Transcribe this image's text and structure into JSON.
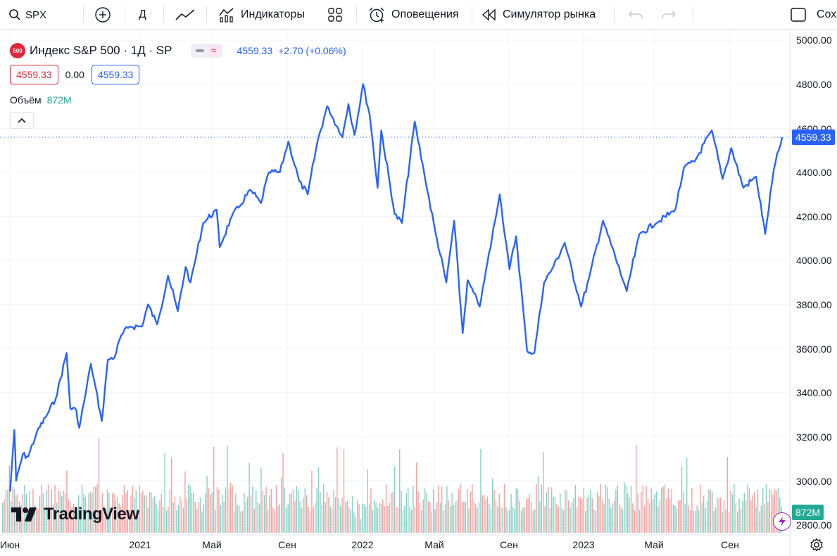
{
  "toolbar": {
    "symbol": "SPX",
    "interval": "Д",
    "indicators_label": "Индикаторы",
    "alerts_label": "Оповещения",
    "replay_label": "Симулятор рынка",
    "save_label": "Сох"
  },
  "legend": {
    "symbol_badge": "500",
    "title": "Индекс S&P 500 · 1Д · SP",
    "last": "4559.33",
    "change": "+2.70 (+0.06%)",
    "bid": "4559.33",
    "spread": "0.00",
    "ask": "4559.33",
    "volume_label": "Объём",
    "volume_value": "872M"
  },
  "price_scale": {
    "ticks": [
      "5000.00",
      "4800.00",
      "4600.00",
      "4400.00",
      "4200.00",
      "4000.00",
      "3800.00",
      "3600.00",
      "3400.00",
      "3200.00",
      "3000.00",
      "2800.00"
    ],
    "last_price_label": "4559.33",
    "volume_label": "872M"
  },
  "time_scale": {
    "ticks": [
      "Июн",
      "2021",
      "Май",
      "Сен",
      "2022",
      "Май",
      "Сен",
      "2023",
      "Май",
      "Сен"
    ]
  },
  "branding": {
    "logo_text": "TradingView"
  },
  "colors": {
    "line": "#2962ff",
    "volume_up": "#22ab94",
    "volume_down": "#ef5350",
    "price_label": "#2962ff",
    "volume_label_bg": "#22ab94"
  },
  "chart_data": {
    "type": "line",
    "title": "Индекс S&P 500 · 1Д · SP",
    "xlabel": "",
    "ylabel": "",
    "ylim": [
      2750,
      5050
    ],
    "x_range": [
      "2020-06",
      "2023-11"
    ],
    "grid": true,
    "series": [
      {
        "name": "S&P 500",
        "points": [
          [
            "2020-06-01",
            2950
          ],
          [
            "2020-06-08",
            3230
          ],
          [
            "2020-06-11",
            3000
          ],
          [
            "2020-06-22",
            3120
          ],
          [
            "2020-07-01",
            3110
          ],
          [
            "2020-07-15",
            3220
          ],
          [
            "2020-08-01",
            3300
          ],
          [
            "2020-08-15",
            3370
          ],
          [
            "2020-09-02",
            3580
          ],
          [
            "2020-09-08",
            3330
          ],
          [
            "2020-09-18",
            3320
          ],
          [
            "2020-09-23",
            3240
          ],
          [
            "2020-10-01",
            3360
          ],
          [
            "2020-10-12",
            3530
          ],
          [
            "2020-10-30",
            3270
          ],
          [
            "2020-11-09",
            3550
          ],
          [
            "2020-11-20",
            3560
          ],
          [
            "2020-12-01",
            3660
          ],
          [
            "2020-12-15",
            3700
          ],
          [
            "2021-01-04",
            3700
          ],
          [
            "2021-01-14",
            3800
          ],
          [
            "2021-01-29",
            3710
          ],
          [
            "2021-02-16",
            3930
          ],
          [
            "2021-03-04",
            3770
          ],
          [
            "2021-03-17",
            3970
          ],
          [
            "2021-03-25",
            3900
          ],
          [
            "2021-04-15",
            4170
          ],
          [
            "2021-05-07",
            4230
          ],
          [
            "2021-05-12",
            4060
          ],
          [
            "2021-06-01",
            4200
          ],
          [
            "2021-06-15",
            4250
          ],
          [
            "2021-07-01",
            4320
          ],
          [
            "2021-07-19",
            4260
          ],
          [
            "2021-08-01",
            4400
          ],
          [
            "2021-08-19",
            4400
          ],
          [
            "2021-09-02",
            4540
          ],
          [
            "2021-09-20",
            4360
          ],
          [
            "2021-10-04",
            4300
          ],
          [
            "2021-10-20",
            4540
          ],
          [
            "2021-11-05",
            4700
          ],
          [
            "2021-11-30",
            4560
          ],
          [
            "2021-12-10",
            4710
          ],
          [
            "2021-12-20",
            4570
          ],
          [
            "2022-01-03",
            4800
          ],
          [
            "2022-01-14",
            4660
          ],
          [
            "2022-01-27",
            4330
          ],
          [
            "2022-02-02",
            4590
          ],
          [
            "2022-02-24",
            4210
          ],
          [
            "2022-03-08",
            4170
          ],
          [
            "2022-03-29",
            4630
          ],
          [
            "2022-04-14",
            4390
          ],
          [
            "2022-05-02",
            4130
          ],
          [
            "2022-05-20",
            3900
          ],
          [
            "2022-06-02",
            4180
          ],
          [
            "2022-06-16",
            3670
          ],
          [
            "2022-06-24",
            3910
          ],
          [
            "2022-07-14",
            3790
          ],
          [
            "2022-08-16",
            4300
          ],
          [
            "2022-09-01",
            3960
          ],
          [
            "2022-09-12",
            4110
          ],
          [
            "2022-09-30",
            3590
          ],
          [
            "2022-10-12",
            3580
          ],
          [
            "2022-10-28",
            3900
          ],
          [
            "2022-11-10",
            3960
          ],
          [
            "2022-12-01",
            4080
          ],
          [
            "2022-12-28",
            3790
          ],
          [
            "2023-01-10",
            3920
          ],
          [
            "2023-02-02",
            4180
          ],
          [
            "2023-03-13",
            3860
          ],
          [
            "2023-04-03",
            4120
          ],
          [
            "2023-05-01",
            4170
          ],
          [
            "2023-06-01",
            4230
          ],
          [
            "2023-06-15",
            4420
          ],
          [
            "2023-07-03",
            4450
          ],
          [
            "2023-07-31",
            4590
          ],
          [
            "2023-08-18",
            4370
          ],
          [
            "2023-09-01",
            4510
          ],
          [
            "2023-09-21",
            4330
          ],
          [
            "2023-10-12",
            4380
          ],
          [
            "2023-10-27",
            4120
          ],
          [
            "2023-11-10",
            4410
          ],
          [
            "2023-11-24",
            4559.33
          ]
        ]
      }
    ],
    "volume": {
      "name": "Объём",
      "last": "872M"
    }
  }
}
